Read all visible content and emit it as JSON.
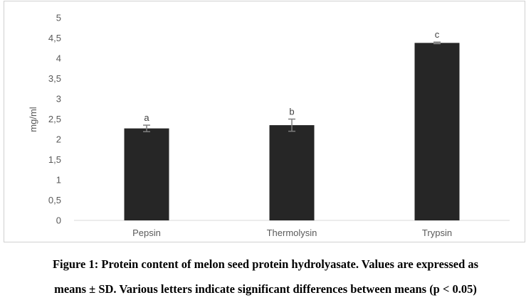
{
  "chart_data": {
    "type": "bar",
    "categories": [
      "Pepsin",
      "Thermolysin",
      "Trypsin"
    ],
    "values": [
      2.27,
      2.35,
      4.38
    ],
    "error": [
      0.08,
      0.15,
      0.02
    ],
    "significance_letters": [
      "a",
      "b",
      "c"
    ],
    "ylabel": "mg/ml",
    "xlabel": "",
    "ylim": [
      0,
      5
    ],
    "yticks": [
      0,
      0.5,
      1,
      1.5,
      2,
      2.5,
      3,
      3.5,
      4,
      4.5,
      5
    ],
    "ytick_labels": [
      "0",
      "0,5",
      "1",
      "1,5",
      "2",
      "2,5",
      "3",
      "3,5",
      "4",
      "4,5",
      "5"
    ],
    "grid": false,
    "bar_color": "#262626"
  },
  "caption": {
    "line1": "Figure 1: Protein content of melon seed protein hydrolyasate. Values are expressed as",
    "line2": "means ± SD. Various letters indicate significant differences between means (p < 0.05)"
  }
}
